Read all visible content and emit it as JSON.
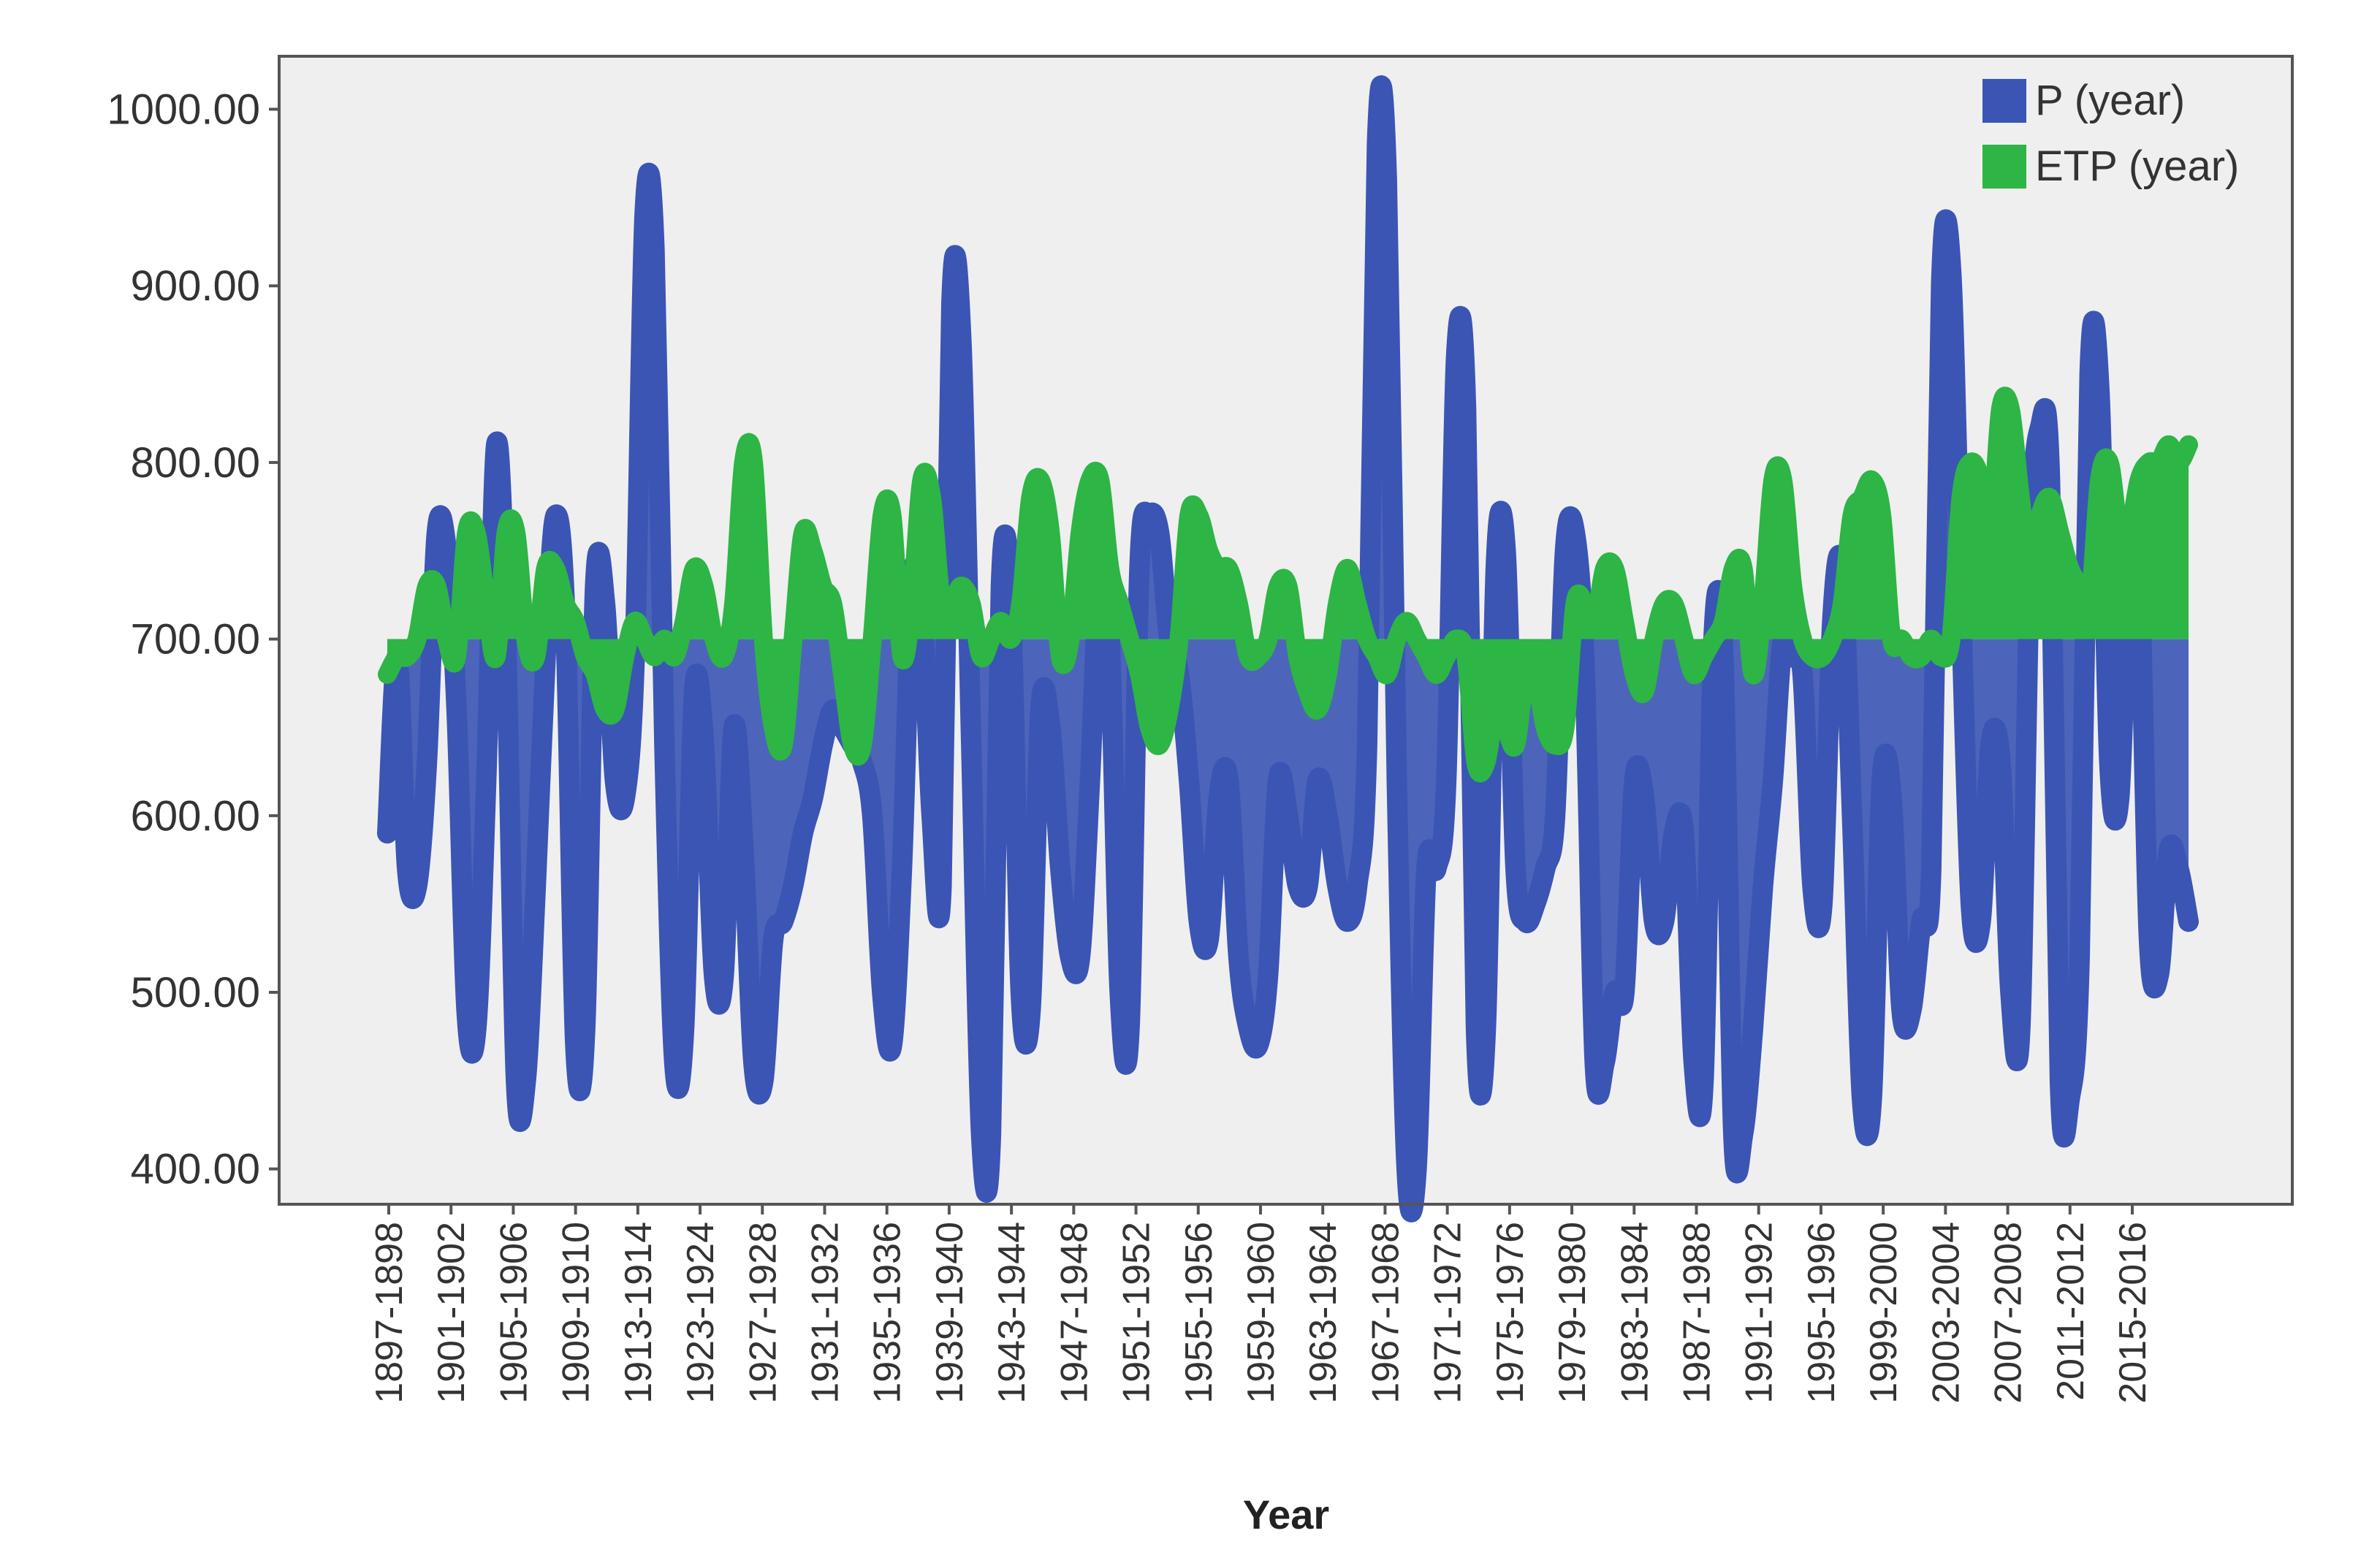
{
  "chart_data": {
    "type": "area",
    "xlabel": "Year",
    "ylabel": "",
    "ylim": [
      380,
      1030
    ],
    "yticks": [
      400,
      500,
      600,
      700,
      800,
      900,
      1000
    ],
    "ytick_labels": [
      "400.00",
      "500.00",
      "600.00",
      "700.00",
      "800.00",
      "900.00",
      "1000.00"
    ],
    "xtick_labels": [
      "1897-1898",
      "1901-1902",
      "1905-1906",
      "1909-1910",
      "1913-1914",
      "1923-1924",
      "1927-1928",
      "1931-1932",
      "1935-1936",
      "1939-1940",
      "1943-1944",
      "1947-1948",
      "1951-1952",
      "1955-1956",
      "1959-1960",
      "1963-1964",
      "1967-1968",
      "1971-1972",
      "1975-1976",
      "1979-1980",
      "1983-1984",
      "1987-1988",
      "1991-1992",
      "1995-1996",
      "1999-2000",
      "2003-2004",
      "2007-2008",
      "2011-2012",
      "2015-2016"
    ],
    "legend_position": "top-right",
    "grid": false,
    "colors": {
      "P": "#3a55b4",
      "ETP": "#2db545",
      "plot_bg": "#efefef",
      "frame": "#555555"
    },
    "series": [
      {
        "name": "P (year)",
        "values": [
          590,
          690,
          570,
          560,
          630,
          760,
          750,
          660,
          490,
          480,
          620,
          810,
          700,
          450,
          450,
          560,
          690,
          770,
          710,
          470,
          480,
          730,
          720,
          620,
          610,
          690,
          940,
          920,
          640,
          460,
          480,
          670,
          640,
          510,
          510,
          650,
          580,
          460,
          450,
          530,
          540,
          560,
          590,
          610,
          640,
          660,
          650,
          640,
          630,
          600,
          500,
          470,
          570,
          730,
          720,
          600,
          560,
          890,
          870,
          640,
          420,
          420,
          730,
          720,
          500,
          490,
          660,
          650,
          570,
          520,
          520,
          620,
          740,
          700,
          500,
          480,
          740,
          770,
          760,
          700,
          680,
          620,
          540,
          530,
          610,
          620,
          520,
          480,
          470,
          510,
          620,
          600,
          560,
          560,
          620,
          600,
          560,
          540,
          560,
          640,
          980,
          960,
          620,
          400,
          400,
          570,
          570,
          620,
          860,
          830,
          480,
          480,
          740,
          750,
          570,
          540,
          550,
          570,
          600,
          750,
          760,
          680,
          460,
          460,
          500,
          500,
          620,
          610,
          540,
          540,
          590,
          590,
          460,
          450,
          700,
          690,
          420,
          420,
          480,
          560,
          620,
          700,
          690,
          680,
          560,
          550,
          710,
          740,
          600,
          440,
          440,
          620,
          610,
          490,
          490,
          540,
          570,
          900,
          910,
          720,
          550,
          540,
          640,
          630,
          500,
          480,
          750,
          820,
          790,
          450,
          440,
          520,
          850,
          840,
          630,
          610,
          750,
          740,
          530,
          510,
          580,
          570,
          540
        ],
        "note_position": "behind"
      },
      {
        "name": "ETP (year)",
        "values": [
          680,
          690,
          690,
          700,
          730,
          730,
          700,
          690,
          760,
          760,
          720,
          690,
          760,
          760,
          700,
          690,
          740,
          740,
          720,
          710,
          690,
          680,
          660,
          660,
          690,
          710,
          700,
          690,
          700,
          690,
          710,
          740,
          730,
          700,
          690,
          720,
          800,
          800,
          700,
          650,
          640,
          700,
          760,
          750,
          730,
          720,
          680,
          640,
          640,
          700,
          770,
          770,
          690,
          720,
          790,
          780,
          720,
          720,
          730,
          720,
          690,
          700,
          710,
          700,
          720,
          780,
          790,
          760,
          690,
          700,
          760,
          790,
          790,
          740,
          720,
          700,
          680,
          650,
          640,
          660,
          700,
          770,
          770,
          750,
          740,
          740,
          720,
          690,
          690,
          700,
          730,
          730,
          690,
          670,
          660,
          680,
          720,
          740,
          720,
          700,
          690,
          680,
          700,
          710,
          700,
          690,
          680,
          690,
          700,
          690,
          630,
          630,
          660,
          650,
          640,
          680,
          680,
          650,
          640,
          650,
          720,
          720,
          710,
          740,
          740,
          710,
          680,
          670,
          700,
          720,
          720,
          700,
          680,
          690,
          700,
          710,
          740,
          740,
          680,
          720,
          790,
          790,
          730,
          700,
          690,
          690,
          700,
          720,
          770,
          780,
          790,
          770,
          700,
          700,
          690,
          690,
          700,
          690,
          700,
          780,
          800,
          790,
          760,
          830,
          830,
          780,
          740,
          770,
          780,
          760,
          740,
          730,
          720,
          790,
          800,
          760,
          760,
          790,
          800,
          800,
          810,
          800,
          810
        ]
      }
    ]
  }
}
